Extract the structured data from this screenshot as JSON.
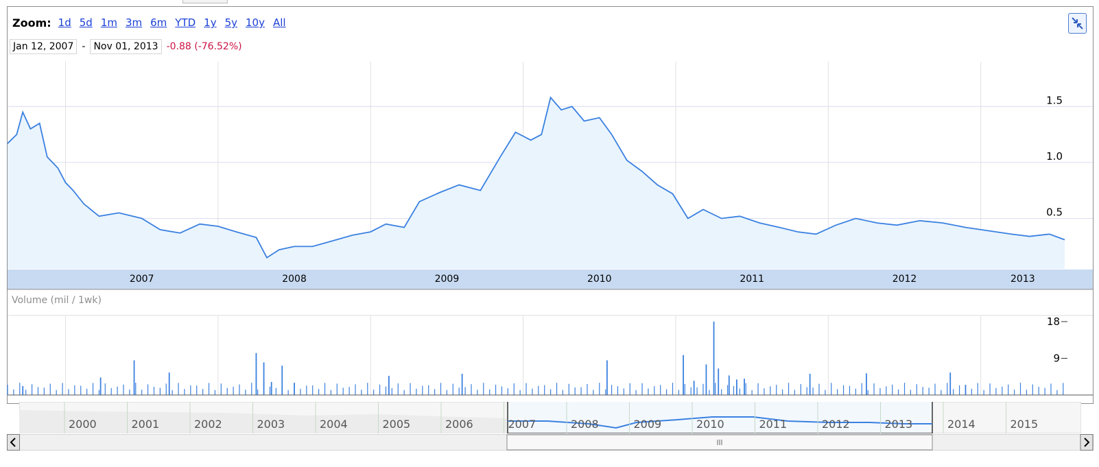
{
  "toolbar": {
    "zoom_label": "Zoom:",
    "zoom_options": [
      "1d",
      "5d",
      "1m",
      "3m",
      "6m",
      "YTD",
      "1y",
      "5y",
      "10y",
      "All"
    ]
  },
  "range": {
    "start": "Jan 12, 2007",
    "separator": "-",
    "end": "Nov 01, 2013",
    "change": "-0.88 (-76.52%)"
  },
  "colors": {
    "line": "#3a80e0",
    "fill": "#e9f4fd",
    "axis_band": "#c7daf2",
    "change_negative": "#cc1144",
    "link": "#1a3fd6"
  },
  "icons": {
    "resize": "collapse-arrows-icon",
    "scroll_left": "chevron-left-icon",
    "scroll_right": "chevron-right-icon",
    "scroll_grip": "grip-icon"
  },
  "volume_label": "Volume (mil / 1wk)",
  "navigator": {
    "years": [
      "2000",
      "2001",
      "2002",
      "2003",
      "2004",
      "2005",
      "2006",
      "2007",
      "2008",
      "2009",
      "2010",
      "2011",
      "2012",
      "2013",
      "2014",
      "2015"
    ],
    "selected_from": "2007",
    "selected_to": "2013"
  },
  "chart_data": [
    {
      "type": "area",
      "x_labels": [
        "2007",
        "2008",
        "2009",
        "2010",
        "2011",
        "2012",
        "2013"
      ],
      "y_ticks": [
        "0.5",
        "1.0",
        "1.5"
      ],
      "ylim": [
        0.05,
        1.9
      ],
      "xlim": [
        2006.62,
        2013.55
      ],
      "grid": true,
      "x": [
        2006.62,
        2006.68,
        2006.72,
        2006.77,
        2006.83,
        2006.88,
        2006.95,
        2007.0,
        2007.05,
        2007.12,
        2007.22,
        2007.35,
        2007.5,
        2007.62,
        2007.75,
        2007.88,
        2008.0,
        2008.12,
        2008.25,
        2008.32,
        2008.4,
        2008.5,
        2008.62,
        2008.75,
        2008.88,
        2009.0,
        2009.1,
        2009.22,
        2009.32,
        2009.45,
        2009.58,
        2009.72,
        2009.85,
        2009.95,
        2010.05,
        2010.12,
        2010.18,
        2010.25,
        2010.32,
        2010.4,
        2010.5,
        2010.58,
        2010.68,
        2010.78,
        2010.88,
        2010.98,
        2011.08,
        2011.18,
        2011.3,
        2011.42,
        2011.55,
        2011.68,
        2011.8,
        2011.92,
        2012.05,
        2012.18,
        2012.32,
        2012.45,
        2012.6,
        2012.75,
        2012.9,
        2013.0,
        2013.1,
        2013.2,
        2013.32,
        2013.45,
        2013.55
      ],
      "values": [
        1.17,
        1.25,
        1.45,
        1.3,
        1.35,
        1.05,
        0.95,
        0.82,
        0.75,
        0.63,
        0.52,
        0.55,
        0.5,
        0.4,
        0.37,
        0.45,
        0.43,
        0.38,
        0.33,
        0.15,
        0.22,
        0.25,
        0.25,
        0.3,
        0.35,
        0.38,
        0.45,
        0.42,
        0.65,
        0.73,
        0.8,
        0.75,
        1.05,
        1.27,
        1.2,
        1.25,
        1.58,
        1.47,
        1.5,
        1.37,
        1.4,
        1.25,
        1.02,
        0.92,
        0.8,
        0.72,
        0.5,
        0.58,
        0.5,
        0.52,
        0.46,
        0.42,
        0.38,
        0.36,
        0.44,
        0.5,
        0.46,
        0.44,
        0.48,
        0.46,
        0.42,
        0.4,
        0.38,
        0.36,
        0.34,
        0.36,
        0.31
      ]
    },
    {
      "type": "bar",
      "title": "Volume (mil / 1wk)",
      "y_ticks": [
        "9",
        "18"
      ],
      "ylim": [
        0,
        18.5
      ],
      "xlim": [
        2006.62,
        2013.55
      ],
      "x": [
        2006.72,
        2007.23,
        2007.45,
        2007.68,
        2008.25,
        2008.3,
        2008.35,
        2008.42,
        2008.5,
        2009.12,
        2009.6,
        2010.55,
        2011.05,
        2011.12,
        2011.2,
        2011.25,
        2011.28,
        2011.35,
        2011.4,
        2011.45,
        2011.88,
        2012.25,
        2012.8,
        2012.9
      ],
      "values": [
        2.2,
        4.3,
        8.5,
        5.5,
        10.3,
        8.0,
        3.2,
        7.2,
        3.0,
        4.7,
        5.2,
        8.5,
        9.8,
        3.5,
        7.5,
        18.0,
        6.5,
        4.8,
        3.8,
        4.0,
        5.2,
        5.3,
        5.5,
        2.5
      ]
    }
  ]
}
